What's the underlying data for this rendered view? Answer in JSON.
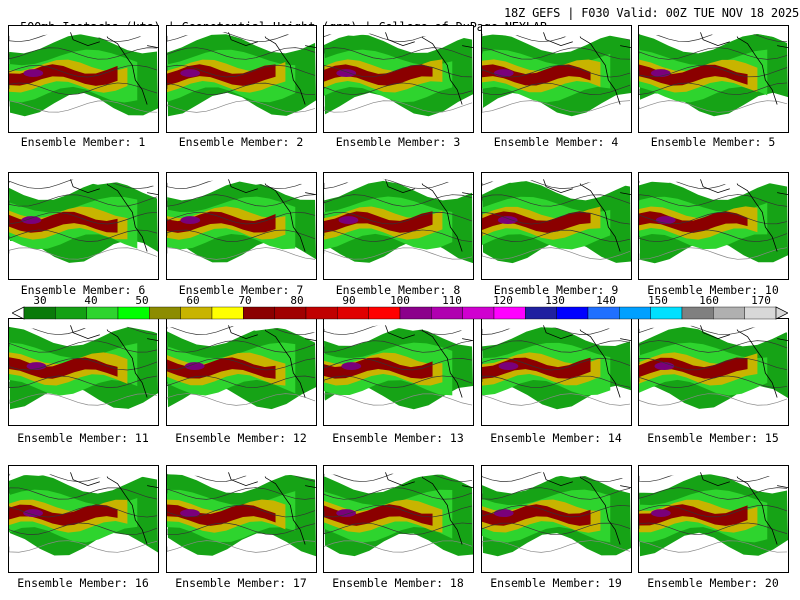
{
  "header": {
    "left": "500mb Isotachs (kts) | Geopotential Height (gpm) | College of DuPage NEXLAB",
    "right": "18Z GEFS | F030 Valid: 00Z TUE NOV 18 2025"
  },
  "members": [
    {
      "label": "Ensemble Member: 1"
    },
    {
      "label": "Ensemble Member: 2"
    },
    {
      "label": "Ensemble Member: 3"
    },
    {
      "label": "Ensemble Member: 4"
    },
    {
      "label": "Ensemble Member: 5"
    },
    {
      "label": "Ensemble Member: 6"
    },
    {
      "label": "Ensemble Member: 7"
    },
    {
      "label": "Ensemble Member: 8"
    },
    {
      "label": "Ensemble Member: 9"
    },
    {
      "label": "Ensemble Member: 10"
    },
    {
      "label": "Ensemble Member: 11"
    },
    {
      "label": "Ensemble Member: 12"
    },
    {
      "label": "Ensemble Member: 13"
    },
    {
      "label": "Ensemble Member: 14"
    },
    {
      "label": "Ensemble Member: 15"
    },
    {
      "label": "Ensemble Member: 16"
    },
    {
      "label": "Ensemble Member: 17"
    },
    {
      "label": "Ensemble Member: 18"
    },
    {
      "label": "Ensemble Member: 19"
    },
    {
      "label": "Ensemble Member: 20"
    }
  ],
  "colorbar": {
    "ticks": [
      "30",
      "40",
      "50",
      "60",
      "70",
      "80",
      "90",
      "100",
      "110",
      "120",
      "130",
      "140",
      "150",
      "160",
      "170"
    ],
    "colors": [
      "#0a7a0a",
      "#14a014",
      "#2ed42e",
      "#00ff00",
      "#8c8c00",
      "#c8b400",
      "#ffff00",
      "#8b0000",
      "#a00000",
      "#c00000",
      "#e00000",
      "#ff0000",
      "#8b008b",
      "#b000b0",
      "#d000d0",
      "#ff00ff",
      "#2020a0",
      "#0000ff",
      "#2070ff",
      "#00a0ff",
      "#00e0ff",
      "#808080",
      "#b0b0b0",
      "#d8d8d8"
    ]
  }
}
